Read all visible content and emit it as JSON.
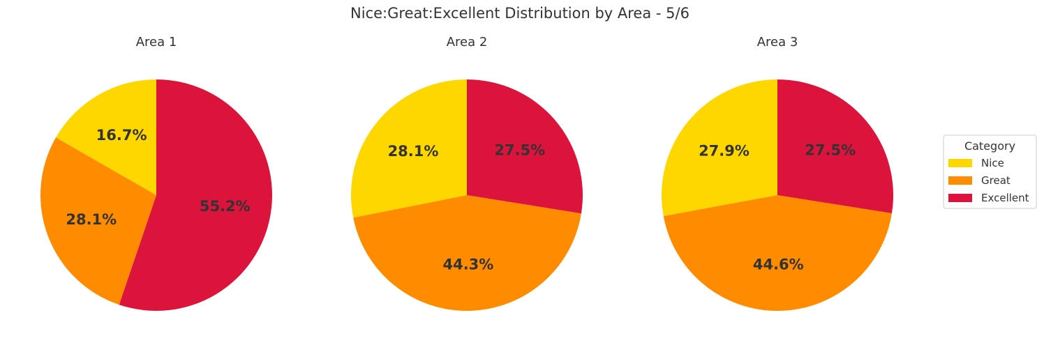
{
  "chart_data": {
    "type": "pie",
    "title": "Nice:Great:Excellent Distribution by Area - 5/6",
    "categories": [
      "Nice",
      "Great",
      "Excellent"
    ],
    "colors": [
      "#FFD700",
      "#FF8C00",
      "#DC143C"
    ],
    "legend": {
      "title": "Category",
      "placement": "right"
    },
    "pies": [
      {
        "title": "Area 1",
        "values": [
          16.7,
          28.1,
          55.2
        ],
        "labels": [
          "16.7%",
          "28.1%",
          "55.2%"
        ]
      },
      {
        "title": "Area 2",
        "values": [
          28.1,
          44.3,
          27.5
        ],
        "labels": [
          "28.1%",
          "44.3%",
          "27.5%"
        ]
      },
      {
        "title": "Area 3",
        "values": [
          27.9,
          44.6,
          27.5
        ],
        "labels": [
          "27.9%",
          "44.6%",
          "27.5%"
        ]
      }
    ]
  }
}
